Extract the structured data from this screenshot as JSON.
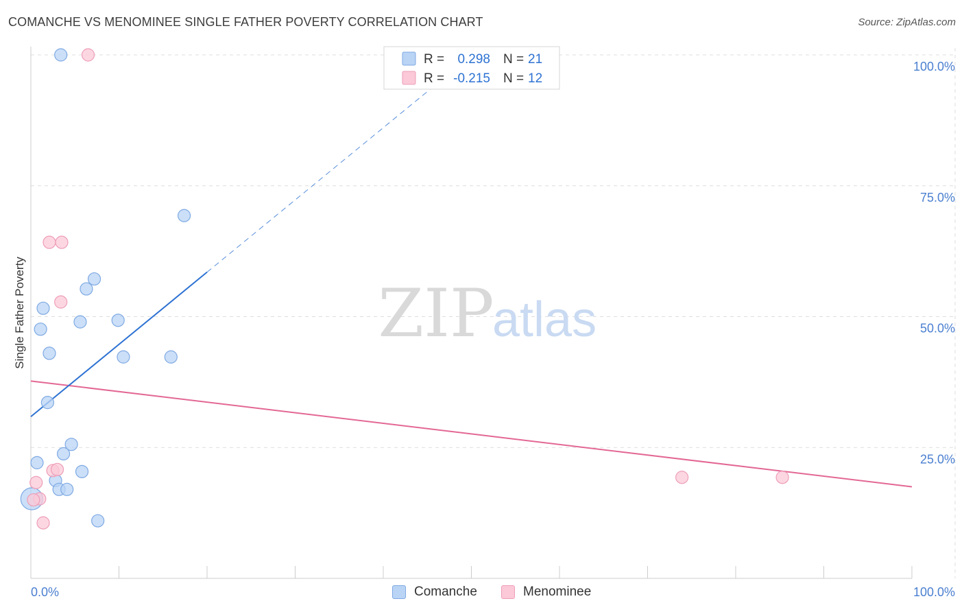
{
  "title": "COMANCHE VS MENOMINEE SINGLE FATHER POVERTY CORRELATION CHART",
  "source": "Source: ZipAtlas.com",
  "watermark": {
    "zip": "ZIP",
    "atlas": "atlas"
  },
  "colors": {
    "comanche_fill": "#b9d4f5",
    "comanche_stroke": "#7ea9e3",
    "comanche_line": "#2d72d2",
    "menominee_fill": "#fbc9d8",
    "menominee_stroke": "#ee9db7",
    "menominee_line": "#e36794",
    "axis_label": "#4a7fd0",
    "grid": "#dddddd"
  },
  "legend_top": {
    "rows": [
      {
        "series": "Comanche",
        "r_label": "R =",
        "r_value": "0.298",
        "n_label": "N =",
        "n_value": "21"
      },
      {
        "series": "Menominee",
        "r_label": "R =",
        "r_value": "-0.215",
        "n_label": "N =",
        "n_value": "12"
      }
    ]
  },
  "legend_bottom": {
    "items": [
      "Comanche",
      "Menominee"
    ]
  },
  "chart_data": {
    "type": "scatter",
    "title": "COMANCHE VS MENOMINEE SINGLE FATHER POVERTY CORRELATION CHART",
    "xlabel": "",
    "ylabel": "Single Father Poverty",
    "xlim": [
      0,
      100
    ],
    "ylim": [
      0,
      100
    ],
    "x_tick_labels": [
      "0.0%",
      "100.0%"
    ],
    "y_ticks": [
      25,
      50,
      75,
      100
    ],
    "y_tick_labels": [
      "25.0%",
      "50.0%",
      "75.0%",
      "100.0%"
    ],
    "grid": true,
    "series": [
      {
        "name": "Comanche",
        "r": 0.298,
        "n": 21,
        "points": [
          {
            "x": 3.4,
            "y": 100.0,
            "size": 9
          },
          {
            "x": 17.4,
            "y": 69.3,
            "size": 9
          },
          {
            "x": 7.2,
            "y": 57.2,
            "size": 9
          },
          {
            "x": 6.3,
            "y": 55.3,
            "size": 9
          },
          {
            "x": 1.4,
            "y": 51.6,
            "size": 9
          },
          {
            "x": 5.6,
            "y": 49.0,
            "size": 9
          },
          {
            "x": 9.9,
            "y": 49.3,
            "size": 9
          },
          {
            "x": 1.1,
            "y": 47.6,
            "size": 9
          },
          {
            "x": 2.1,
            "y": 43.0,
            "size": 9
          },
          {
            "x": 10.5,
            "y": 42.3,
            "size": 9
          },
          {
            "x": 15.9,
            "y": 42.3,
            "size": 9
          },
          {
            "x": 1.9,
            "y": 33.6,
            "size": 9
          },
          {
            "x": 4.6,
            "y": 25.6,
            "size": 9
          },
          {
            "x": 3.7,
            "y": 23.8,
            "size": 9
          },
          {
            "x": 0.7,
            "y": 22.1,
            "size": 9
          },
          {
            "x": 5.8,
            "y": 20.4,
            "size": 9
          },
          {
            "x": 2.8,
            "y": 18.7,
            "size": 9
          },
          {
            "x": 3.2,
            "y": 17.0,
            "size": 9
          },
          {
            "x": 4.1,
            "y": 17.0,
            "size": 9
          },
          {
            "x": 7.6,
            "y": 11.0,
            "size": 9
          },
          {
            "x": 0.1,
            "y": 15.2,
            "size": 16
          }
        ],
        "trend": {
          "x_start": 0,
          "y_start": 30.9,
          "x_solid_end": 20,
          "y_solid_end": 58.5,
          "x_end": 49,
          "y_end": 98.5
        }
      },
      {
        "name": "Menominee",
        "r": -0.215,
        "n": 12,
        "points": [
          {
            "x": 6.5,
            "y": 100.0,
            "size": 9
          },
          {
            "x": 2.1,
            "y": 64.2,
            "size": 9
          },
          {
            "x": 3.5,
            "y": 64.2,
            "size": 9
          },
          {
            "x": 3.4,
            "y": 52.8,
            "size": 9
          },
          {
            "x": 2.5,
            "y": 20.6,
            "size": 9
          },
          {
            "x": 3.0,
            "y": 20.8,
            "size": 9
          },
          {
            "x": 0.6,
            "y": 18.3,
            "size": 9
          },
          {
            "x": 1.0,
            "y": 15.2,
            "size": 9
          },
          {
            "x": 1.4,
            "y": 10.6,
            "size": 9
          },
          {
            "x": 73.9,
            "y": 19.3,
            "size": 9
          },
          {
            "x": 85.3,
            "y": 19.3,
            "size": 9
          },
          {
            "x": 0.3,
            "y": 15.0,
            "size": 9
          }
        ],
        "trend": {
          "x_start": 0,
          "y_start": 37.7,
          "x_end": 100,
          "y_end": 17.5
        }
      }
    ]
  }
}
